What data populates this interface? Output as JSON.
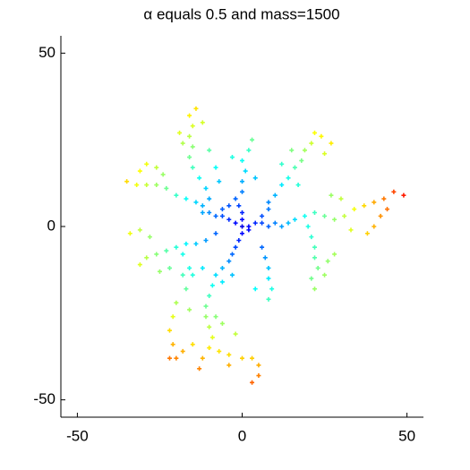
{
  "chart_data": {
    "type": "scatter",
    "title": "α equals 0.5 and mass=1500",
    "xlim": [
      -55,
      55
    ],
    "ylim": [
      -55,
      55
    ],
    "xticks": [
      -50,
      0,
      50
    ],
    "yticks": [
      -50,
      0,
      50
    ],
    "colormap": "jet",
    "marker": "+",
    "x": [
      0,
      2,
      4,
      6,
      8,
      10,
      12,
      -2,
      -4,
      -6,
      -8,
      -10,
      0,
      -1,
      -2,
      -3,
      0,
      0,
      -1,
      -2,
      2,
      -12,
      -6,
      -4,
      6,
      8,
      14,
      -12,
      -4,
      -6,
      -8,
      -9,
      -10,
      -11,
      -11,
      -10,
      -9,
      -10,
      -12,
      -13,
      -7,
      -4,
      0,
      3,
      5,
      5,
      3,
      -4,
      -15,
      -18,
      -20,
      -6,
      -3,
      -12,
      -15,
      -17,
      -20,
      -21,
      -22,
      -21,
      -22,
      -16,
      -8,
      -11,
      -14,
      -17,
      -20,
      -23,
      -26,
      -29,
      -31,
      -28,
      -31,
      -34,
      -18,
      -22,
      -25,
      -14,
      -17,
      -20,
      -23,
      -26,
      -29,
      -32,
      -35,
      -24,
      -26,
      -29,
      -31,
      -10,
      -11,
      -13,
      -15,
      -16,
      -15,
      -16,
      -15,
      -16,
      -14,
      -18,
      -19,
      -12,
      -10,
      -8,
      -7,
      0,
      0,
      1,
      0,
      2,
      3,
      -3,
      4,
      8,
      10,
      12,
      14,
      16,
      18,
      19,
      21,
      22,
      24,
      27,
      25,
      15,
      12,
      17,
      16,
      19,
      22,
      25,
      28,
      31,
      34,
      37,
      40,
      43,
      46,
      49,
      44,
      42,
      40,
      38,
      30,
      27,
      33,
      20,
      21,
      22,
      22,
      23,
      21,
      22,
      25,
      26,
      28,
      6,
      7,
      8,
      8,
      9,
      8,
      4,
      -8,
      -6,
      -2,
      -16,
      -18
    ],
    "values": [
      0,
      0,
      1,
      1,
      0,
      1,
      0,
      1,
      2,
      3,
      3,
      4,
      -2,
      -4,
      -6,
      -8,
      2,
      4,
      6,
      8,
      -1,
      4,
      5,
      6,
      3,
      5,
      1,
      6,
      -10,
      -12,
      -14,
      -17,
      -20,
      -23,
      -26,
      -29,
      -32,
      -35,
      -38,
      -41,
      -36,
      -37,
      -38,
      -38,
      -40,
      -43,
      -45,
      -40,
      -34,
      -36,
      -38,
      -16,
      -14,
      -12,
      -14,
      -18,
      -22,
      -26,
      -30,
      -34,
      -38,
      -24,
      -2,
      -4,
      -5,
      -5,
      -6,
      -7,
      -8,
      -9,
      -11,
      -3,
      -1,
      -2,
      -8,
      -12,
      -13,
      7,
      8,
      9,
      11,
      12,
      12,
      12,
      13,
      15,
      17,
      18,
      16,
      8,
      11,
      14,
      17,
      20,
      23,
      26,
      29,
      32,
      34,
      24,
      27,
      30,
      22,
      17,
      13,
      10,
      13,
      16,
      19,
      22,
      25,
      20,
      14,
      7,
      9,
      12,
      14,
      17,
      19,
      22,
      24,
      27,
      26,
      24,
      21,
      22,
      18,
      12,
      2,
      3,
      4,
      3,
      2,
      3,
      5,
      6,
      7,
      8,
      10,
      9,
      5,
      3,
      0,
      -2,
      8,
      9,
      -1,
      0,
      -3,
      -6,
      -9,
      -12,
      -15,
      -18,
      -14,
      -10,
      -8,
      -6,
      -9,
      -12,
      -15,
      -18,
      -21,
      -18,
      -26,
      -28,
      -31,
      -12,
      -14
    ]
  }
}
